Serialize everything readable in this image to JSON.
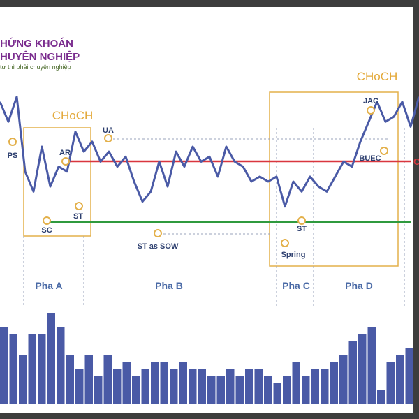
{
  "brand": {
    "line1": "HỨNG KHOÁN",
    "line2": "HUYÊN NGHIỆP",
    "tagline": "tư thì phải chuyên nghiệp"
  },
  "choch_labels": [
    "CHoCH",
    "CHoCH"
  ],
  "edge_label": "C",
  "points": {
    "ps": "PS",
    "sc": "SC",
    "ar": "AR",
    "st1": "ST",
    "ua": "UA",
    "st_sow": "ST as SOW",
    "spring": "Spring",
    "st2": "ST",
    "jac": "JAC",
    "buec": "BUEC"
  },
  "phases": [
    "Pha A",
    "Pha B",
    "Pha C",
    "Pha D"
  ],
  "colors": {
    "price": "#4a5aa6",
    "volume": "#4a5aa6",
    "box": "#e3b04a",
    "resistance": "#d9363e",
    "support": "#2f9a3e",
    "marker": "#e3b04a",
    "choch_text": "#e3a93a",
    "label_text": "#2c3e6e",
    "phase_text": "#4a6aa6"
  },
  "chart_data": {
    "type": "line",
    "title": "",
    "xlabel": "",
    "ylabel": "",
    "price_series": [
      30,
      26,
      31,
      16,
      12,
      21,
      13,
      17,
      16,
      24,
      20,
      22,
      18,
      20,
      17,
      19,
      14,
      10,
      12,
      18,
      13,
      20,
      17,
      21,
      18,
      19,
      15,
      21,
      18,
      17,
      14,
      15,
      14,
      15,
      9,
      14,
      12,
      15,
      13,
      12,
      15,
      18,
      17,
      22,
      26,
      30,
      26,
      27,
      30,
      25,
      31
    ],
    "volume_series": [
      11,
      10,
      7,
      10,
      10,
      13,
      11,
      7,
      5,
      7,
      4,
      7,
      5,
      6,
      4,
      5,
      6,
      6,
      5,
      6,
      5,
      5,
      4,
      4,
      5,
      4,
      5,
      5,
      4,
      3,
      4,
      6,
      4,
      5,
      5,
      6,
      7,
      9,
      10,
      11,
      2,
      6,
      7,
      8
    ],
    "ylim": [
      0,
      35
    ],
    "volume_ylim": [
      0,
      14
    ]
  }
}
